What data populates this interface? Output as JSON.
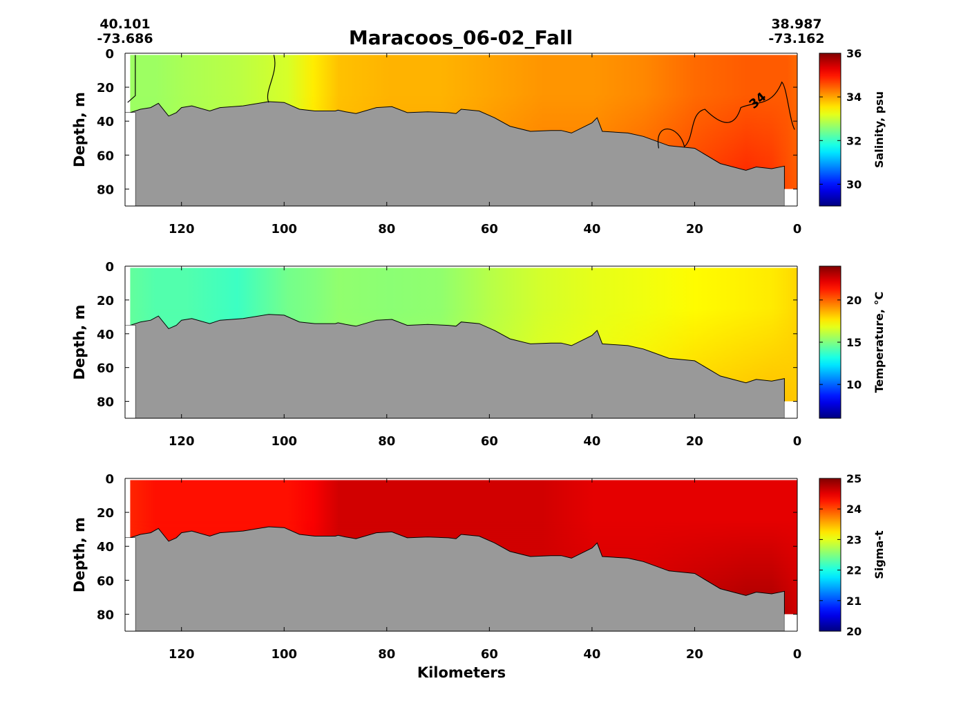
{
  "title": "Maracoos_06-02_Fall",
  "start_coord": {
    "lat": "40.101",
    "lon": "-73.686"
  },
  "end_coord": {
    "lat": "38.987",
    "lon": "-73.162"
  },
  "xlabel": "Kilometers",
  "colors": {
    "bathymetry": "#999999",
    "contour": "#000000"
  },
  "chart_data": [
    {
      "type": "heatmap",
      "title": "",
      "xlabel": "",
      "ylabel": "Depth, m",
      "xlim": [
        131,
        0
      ],
      "ylim": [
        90,
        0
      ],
      "x_reversed": true,
      "y_reversed": true,
      "xticks": [
        120,
        100,
        80,
        60,
        40,
        20,
        0
      ],
      "yticks": [
        0,
        20,
        40,
        60,
        80
      ],
      "colorbar": {
        "label": "Salinity, psu",
        "range": [
          29,
          36
        ],
        "ticks": [
          30,
          32,
          34,
          36
        ],
        "colormap": "jet"
      },
      "contour_label": "34",
      "section_data": {
        "distance_km": [
          131,
          126,
          120,
          110,
          100,
          95,
          90,
          80,
          70,
          60,
          50,
          40,
          30,
          20,
          10,
          5,
          2,
          0
        ],
        "values": [
          32.7,
          32.7,
          32.8,
          32.9,
          33.1,
          33.5,
          33.8,
          33.9,
          33.9,
          34.0,
          34.1,
          34.1,
          34.2,
          34.4,
          34.5,
          34.5,
          34.5,
          34.4
        ],
        "bottom_values": [
          32.7,
          32.7,
          32.8,
          32.9,
          33.1,
          33.6,
          33.9,
          34.0,
          34.0,
          34.2,
          34.3,
          34.3,
          34.5,
          34.7,
          34.9,
          34.8,
          34.6,
          34.5
        ]
      }
    },
    {
      "type": "heatmap",
      "title": "",
      "xlabel": "",
      "ylabel": "Depth, m",
      "xlim": [
        131,
        0
      ],
      "ylim": [
        90,
        0
      ],
      "x_reversed": true,
      "y_reversed": true,
      "xticks": [
        120,
        100,
        80,
        60,
        40,
        20,
        0
      ],
      "yticks": [
        0,
        20,
        40,
        60,
        80
      ],
      "colorbar": {
        "label": "Temperature, °C",
        "range": [
          6,
          24
        ],
        "ticks": [
          10,
          15,
          20
        ],
        "colormap": "jet"
      },
      "section_data": {
        "distance_km": [
          131,
          126,
          120,
          110,
          100,
          95,
          90,
          80,
          70,
          60,
          50,
          40,
          30,
          20,
          10,
          5,
          2,
          0
        ],
        "values": [
          14.5,
          14.2,
          14.2,
          13.8,
          14.8,
          15.0,
          15.3,
          15.2,
          15.3,
          16.0,
          16.5,
          16.8,
          17.0,
          17.3,
          17.5,
          17.6,
          17.8,
          18.0
        ],
        "bottom_values": [
          14.5,
          14.2,
          14.2,
          13.8,
          14.8,
          15.2,
          15.5,
          15.6,
          15.7,
          16.3,
          16.8,
          17.0,
          17.6,
          18.1,
          18.3,
          18.4,
          18.3,
          18.2
        ]
      }
    },
    {
      "type": "heatmap",
      "title": "",
      "xlabel": "Kilometers",
      "ylabel": "Depth, m",
      "xlim": [
        131,
        0
      ],
      "ylim": [
        90,
        0
      ],
      "x_reversed": true,
      "y_reversed": true,
      "xticks": [
        120,
        100,
        80,
        60,
        40,
        20,
        0
      ],
      "yticks": [
        0,
        20,
        40,
        60,
        80
      ],
      "colorbar": {
        "label": "Sigma-t",
        "range": [
          20,
          25
        ],
        "ticks": [
          20,
          21,
          22,
          23,
          24,
          25
        ],
        "colormap": "jet"
      },
      "section_data": {
        "distance_km": [
          131,
          126,
          120,
          110,
          100,
          95,
          90,
          80,
          70,
          60,
          50,
          40,
          30,
          20,
          10,
          5,
          2,
          0
        ],
        "values": [
          24.2,
          24.3,
          24.3,
          24.3,
          24.3,
          24.4,
          24.6,
          24.6,
          24.6,
          24.6,
          24.6,
          24.5,
          24.5,
          24.5,
          24.5,
          24.5,
          24.5,
          24.5
        ],
        "bottom_values": [
          24.2,
          24.3,
          24.3,
          24.3,
          24.3,
          24.5,
          24.6,
          24.6,
          24.6,
          24.6,
          24.6,
          24.6,
          24.6,
          24.7,
          24.8,
          24.8,
          24.7,
          24.6
        ]
      }
    }
  ],
  "bathymetry": {
    "distance_km": [
      131,
      130,
      128,
      126,
      124.5,
      122.5,
      121,
      120,
      118,
      114.5,
      112.5,
      108,
      103,
      100,
      97,
      94,
      90,
      89.5,
      88,
      86,
      82,
      79,
      76,
      72,
      68,
      66.5,
      65.5,
      62,
      59,
      56,
      52,
      48,
      46,
      44,
      40,
      39,
      38,
      33,
      30,
      25,
      20,
      15,
      10,
      8,
      5,
      2.5
    ],
    "depth_m": [
      35,
      35,
      33,
      32,
      29.5,
      37,
      35,
      32,
      31,
      34,
      32,
      31,
      28.5,
      29,
      33,
      34,
      34,
      33.5,
      34.5,
      35.5,
      32,
      31.5,
      35,
      34.5,
      35,
      35.5,
      33,
      34,
      38,
      43,
      46,
      45.5,
      45.5,
      47,
      41,
      38,
      46,
      47,
      49,
      54.5,
      56,
      65,
      69,
      67,
      68,
      66.5
    ]
  }
}
